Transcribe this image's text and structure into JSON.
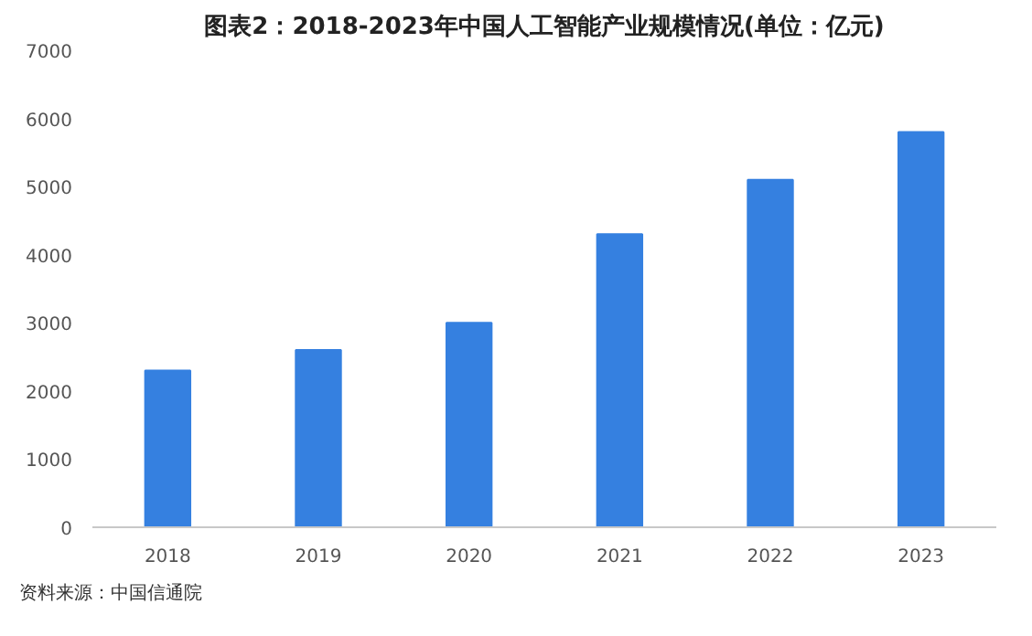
{
  "chart_data": {
    "type": "bar",
    "title": "图表2：2018-2023年中国人工智能产业规模情况(单位：亿元)",
    "categories": [
      "2018",
      "2019",
      "2020",
      "2021",
      "2022",
      "2023"
    ],
    "values": [
      2300,
      2600,
      3000,
      4300,
      5100,
      5800
    ],
    "color": "#3580e0",
    "ylim": [
      0,
      7000
    ],
    "yticks": [
      0,
      1000,
      2000,
      3000,
      4000,
      5000,
      6000,
      7000
    ],
    "grid": false,
    "annotations": [
      "资料来源：中国信通院"
    ]
  }
}
